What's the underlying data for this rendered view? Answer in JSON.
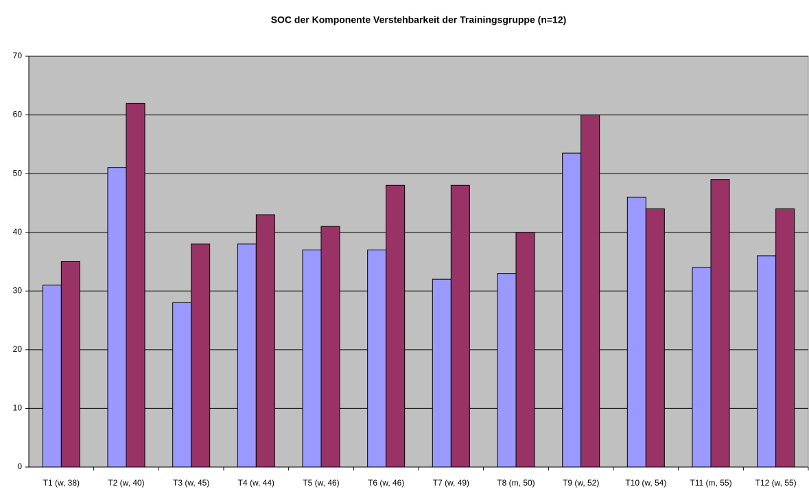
{
  "chart_data": {
    "type": "bar",
    "title": "SOC der Komponente Verstehbarkeit der Trainingsgruppe (n=12)",
    "categories": [
      "T1 (w, 38)",
      "T2 (w, 40)",
      "T3 (w, 45)",
      "T4 (w, 44)",
      "T5 (w, 46)",
      "T6 (w, 46)",
      "T7 (w, 49)",
      "T8 (m, 50)",
      "T9 (w, 52)",
      "T10 (w, 54)",
      "T11 (m, 55)",
      "T12 (w, 55)"
    ],
    "series": [
      {
        "color": "#9999ff",
        "values": [
          31,
          51,
          28,
          38,
          37,
          37,
          32,
          33,
          53.5,
          46,
          34,
          36
        ]
      },
      {
        "color": "#993366",
        "values": [
          35,
          62,
          38,
          43,
          41,
          48,
          48,
          40,
          60,
          44,
          49,
          44
        ]
      }
    ],
    "ylim": [
      0,
      70
    ],
    "yticks": [
      0,
      10,
      20,
      30,
      40,
      50,
      60,
      70
    ],
    "grid": true,
    "plot_background": "#c0c0c0"
  }
}
